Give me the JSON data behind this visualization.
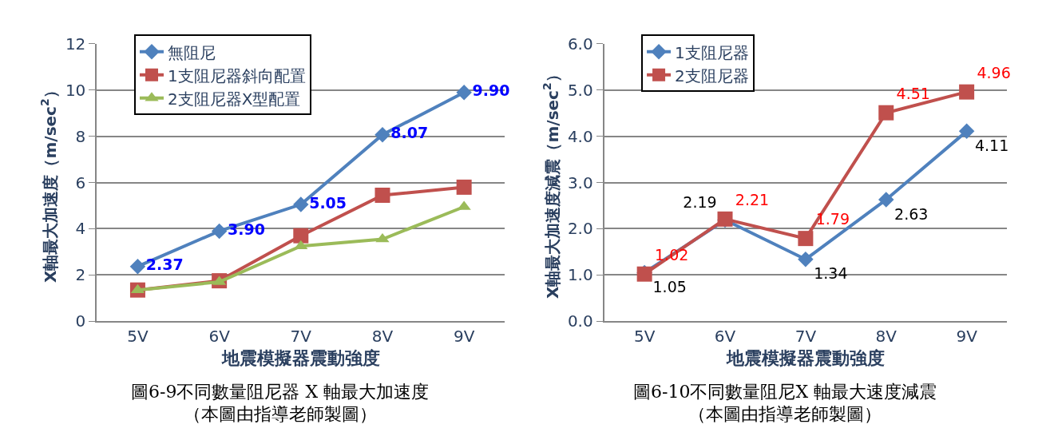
{
  "chart_data": [
    {
      "type": "line",
      "xlabel": "地震模擬器震動強度",
      "ylabel": "X軸最大加速度（m/sec$^{2}$）",
      "categories": [
        "5V",
        "6V",
        "7V",
        "8V",
        "9V"
      ],
      "series": [
        {
          "name": "無阻尼",
          "color": "#4f81bd",
          "marker": "diamond",
          "values": [
            2.37,
            3.9,
            5.05,
            8.07,
            9.9
          ],
          "value_labels": [
            "2.37",
            "3.90",
            "5.05",
            "8.07",
            "9.90"
          ]
        },
        {
          "name": "1支阻尼器斜向配置",
          "color": "#c0504d",
          "marker": "square",
          "values": [
            1.35,
            1.75,
            3.7,
            5.45,
            5.8
          ]
        },
        {
          "name": "2支阻尼器X型配置",
          "color": "#9bbb59",
          "marker": "triangle",
          "values": [
            1.35,
            1.7,
            3.25,
            3.55,
            4.95
          ]
        }
      ],
      "ylim": [
        0,
        12
      ],
      "yticks": [
        0,
        2,
        4,
        6,
        8,
        10,
        12
      ],
      "grid": "y",
      "legend": "top left",
      "annotations": [
        "圖6-9不同數量阻尼器 X 軸最大加速度",
        "（本圖由指導老師製圖）"
      ]
    },
    {
      "type": "line",
      "xlabel": "地震模擬器震動強度",
      "ylabel": "X軸最大加速度減震（m/sec$^{2}$）",
      "categories": [
        "5V",
        "6V",
        "7V",
        "8V",
        "9V"
      ],
      "series": [
        {
          "name": "1支阻尼器",
          "color": "#4f81bd",
          "marker": "diamond",
          "values": [
            1.05,
            2.19,
            1.34,
            2.63,
            4.11
          ]
        },
        {
          "name": "2支阻尼器",
          "color": "#c0504d",
          "marker": "square",
          "values": [
            1.02,
            2.21,
            1.79,
            4.51,
            4.96
          ]
        }
      ],
      "data_labels": true,
      "ylim": [
        0,
        6
      ],
      "yticks": [
        {
          "value": 0,
          "label": "0.0"
        },
        {
          "value": 1,
          "label": "1.0"
        },
        {
          "value": 2,
          "label": "2.0"
        },
        {
          "value": 3,
          "label": "3.0"
        },
        {
          "value": 4,
          "label": "4.0"
        },
        {
          "value": 5,
          "label": "5.0"
        },
        {
          "value": 6,
          "label": "6.0"
        }
      ],
      "grid": "y",
      "legend": "top left",
      "annotations": [
        "圖6-10不同數量阻尼X 軸最大速度減震",
        "（本圖由指導老師製圖）"
      ]
    }
  ]
}
